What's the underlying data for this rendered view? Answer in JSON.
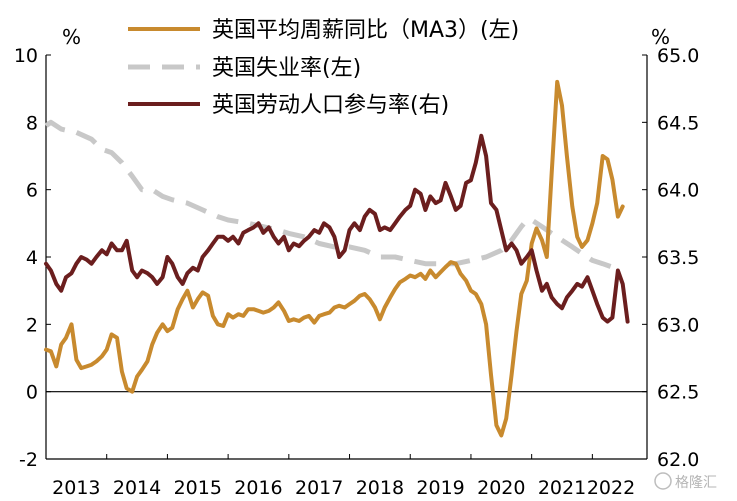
{
  "chart_data": {
    "type": "line",
    "title": "",
    "left_axis": {
      "unit": "%",
      "ylim": [
        -2,
        10
      ],
      "ticks": [
        -2,
        0,
        2,
        4,
        6,
        8,
        10
      ]
    },
    "right_axis": {
      "unit": "%",
      "ylim": [
        62.0,
        65.0
      ],
      "ticks": [
        "62.0",
        "62.5",
        "63.0",
        "63.5",
        "64.0",
        "64.5",
        "65.0"
      ]
    },
    "x_labels": [
      "2013",
      "2014",
      "2015",
      "2016",
      "2017",
      "2018",
      "2019",
      "2020",
      "2021",
      "2022"
    ],
    "x_range": [
      2013.0,
      2022.9
    ],
    "series": [
      {
        "name": "英国平均周薪同比（MA3）(左)",
        "axis": "left",
        "color": "#C88A2E",
        "dash": "solid",
        "points": [
          [
            2013.0,
            1.25
          ],
          [
            2013.08,
            1.2
          ],
          [
            2013.17,
            0.75
          ],
          [
            2013.25,
            1.4
          ],
          [
            2013.33,
            1.6
          ],
          [
            2013.42,
            2.0
          ],
          [
            2013.5,
            0.95
          ],
          [
            2013.58,
            0.7
          ],
          [
            2013.67,
            0.75
          ],
          [
            2013.75,
            0.8
          ],
          [
            2013.83,
            0.9
          ],
          [
            2013.92,
            1.05
          ],
          [
            2014.0,
            1.25
          ],
          [
            2014.08,
            1.7
          ],
          [
            2014.17,
            1.6
          ],
          [
            2014.25,
            0.6
          ],
          [
            2014.33,
            0.1
          ],
          [
            2014.42,
            0.0
          ],
          [
            2014.5,
            0.45
          ],
          [
            2014.58,
            0.65
          ],
          [
            2014.67,
            0.9
          ],
          [
            2014.75,
            1.4
          ],
          [
            2014.83,
            1.75
          ],
          [
            2014.92,
            2.0
          ],
          [
            2015.0,
            1.8
          ],
          [
            2015.08,
            1.9
          ],
          [
            2015.17,
            2.45
          ],
          [
            2015.25,
            2.75
          ],
          [
            2015.33,
            3.0
          ],
          [
            2015.42,
            2.5
          ],
          [
            2015.5,
            2.75
          ],
          [
            2015.58,
            2.95
          ],
          [
            2015.67,
            2.85
          ],
          [
            2015.75,
            2.25
          ],
          [
            2015.83,
            2.0
          ],
          [
            2015.92,
            1.95
          ],
          [
            2016.0,
            2.3
          ],
          [
            2016.08,
            2.2
          ],
          [
            2016.17,
            2.3
          ],
          [
            2016.25,
            2.25
          ],
          [
            2016.33,
            2.45
          ],
          [
            2016.42,
            2.45
          ],
          [
            2016.5,
            2.4
          ],
          [
            2016.58,
            2.35
          ],
          [
            2016.67,
            2.4
          ],
          [
            2016.75,
            2.5
          ],
          [
            2016.83,
            2.65
          ],
          [
            2016.92,
            2.4
          ],
          [
            2017.0,
            2.1
          ],
          [
            2017.08,
            2.15
          ],
          [
            2017.17,
            2.1
          ],
          [
            2017.25,
            2.2
          ],
          [
            2017.33,
            2.25
          ],
          [
            2017.42,
            2.05
          ],
          [
            2017.5,
            2.25
          ],
          [
            2017.58,
            2.3
          ],
          [
            2017.67,
            2.35
          ],
          [
            2017.75,
            2.5
          ],
          [
            2017.83,
            2.55
          ],
          [
            2017.92,
            2.5
          ],
          [
            2018.0,
            2.6
          ],
          [
            2018.08,
            2.7
          ],
          [
            2018.17,
            2.85
          ],
          [
            2018.25,
            2.9
          ],
          [
            2018.33,
            2.75
          ],
          [
            2018.42,
            2.5
          ],
          [
            2018.5,
            2.15
          ],
          [
            2018.58,
            2.5
          ],
          [
            2018.67,
            2.8
          ],
          [
            2018.75,
            3.05
          ],
          [
            2018.83,
            3.25
          ],
          [
            2018.92,
            3.35
          ],
          [
            2019.0,
            3.45
          ],
          [
            2019.08,
            3.4
          ],
          [
            2019.17,
            3.5
          ],
          [
            2019.25,
            3.35
          ],
          [
            2019.33,
            3.6
          ],
          [
            2019.42,
            3.4
          ],
          [
            2019.5,
            3.55
          ],
          [
            2019.58,
            3.7
          ],
          [
            2019.67,
            3.85
          ],
          [
            2019.75,
            3.8
          ],
          [
            2019.83,
            3.5
          ],
          [
            2019.92,
            3.3
          ],
          [
            2020.0,
            3.0
          ],
          [
            2020.08,
            2.9
          ],
          [
            2020.17,
            2.6
          ],
          [
            2020.25,
            2.0
          ],
          [
            2020.33,
            0.5
          ],
          [
            2020.42,
            -1.0
          ],
          [
            2020.5,
            -1.3
          ],
          [
            2020.58,
            -0.8
          ],
          [
            2020.67,
            0.5
          ],
          [
            2020.75,
            1.8
          ],
          [
            2020.83,
            2.9
          ],
          [
            2020.92,
            3.3
          ],
          [
            2021.0,
            4.4
          ],
          [
            2021.08,
            4.85
          ],
          [
            2021.17,
            4.5
          ],
          [
            2021.25,
            4.0
          ],
          [
            2021.33,
            6.5
          ],
          [
            2021.42,
            9.2
          ],
          [
            2021.5,
            8.5
          ],
          [
            2021.58,
            7.0
          ],
          [
            2021.67,
            5.5
          ],
          [
            2021.75,
            4.6
          ],
          [
            2021.83,
            4.3
          ],
          [
            2021.92,
            4.5
          ],
          [
            2022.0,
            5.0
          ],
          [
            2022.08,
            5.6
          ],
          [
            2022.17,
            7.0
          ],
          [
            2022.25,
            6.9
          ],
          [
            2022.33,
            6.3
          ],
          [
            2022.42,
            5.2
          ],
          [
            2022.5,
            5.5
          ]
        ]
      },
      {
        "name": "英国失业率(左)",
        "axis": "left",
        "color": "#C8C8C8",
        "dash": "dashed",
        "points": [
          [
            2013.0,
            7.9
          ],
          [
            2013.08,
            8.0
          ],
          [
            2013.25,
            7.8
          ],
          [
            2013.5,
            7.7
          ],
          [
            2013.75,
            7.5
          ],
          [
            2013.92,
            7.2
          ],
          [
            2014.08,
            7.1
          ],
          [
            2014.25,
            6.8
          ],
          [
            2014.42,
            6.4
          ],
          [
            2014.58,
            6.0
          ],
          [
            2014.75,
            6.0
          ],
          [
            2014.92,
            5.8
          ],
          [
            2015.08,
            5.7
          ],
          [
            2015.33,
            5.6
          ],
          [
            2015.58,
            5.4
          ],
          [
            2015.83,
            5.2
          ],
          [
            2016.0,
            5.1
          ],
          [
            2016.33,
            5.0
          ],
          [
            2016.58,
            4.9
          ],
          [
            2016.83,
            4.8
          ],
          [
            2017.0,
            4.7
          ],
          [
            2017.25,
            4.6
          ],
          [
            2017.5,
            4.4
          ],
          [
            2017.75,
            4.3
          ],
          [
            2018.0,
            4.3
          ],
          [
            2018.25,
            4.2
          ],
          [
            2018.5,
            4.0
          ],
          [
            2018.75,
            4.0
          ],
          [
            2019.0,
            3.9
          ],
          [
            2019.25,
            3.8
          ],
          [
            2019.5,
            3.8
          ],
          [
            2019.75,
            3.8
          ],
          [
            2020.0,
            3.9
          ],
          [
            2020.25,
            4.0
          ],
          [
            2020.5,
            4.2
          ],
          [
            2020.67,
            4.5
          ],
          [
            2020.83,
            4.9
          ],
          [
            2020.92,
            5.1
          ],
          [
            2021.0,
            5.1
          ],
          [
            2021.17,
            4.9
          ],
          [
            2021.33,
            4.7
          ],
          [
            2021.5,
            4.5
          ],
          [
            2021.67,
            4.3
          ],
          [
            2021.83,
            4.1
          ],
          [
            2022.0,
            3.9
          ],
          [
            2022.17,
            3.8
          ],
          [
            2022.33,
            3.7
          ],
          [
            2022.42,
            3.7
          ]
        ]
      },
      {
        "name": "英国劳动人口参与率(右)",
        "axis": "right",
        "color": "#6B1E1E",
        "dash": "solid",
        "points": [
          [
            2013.0,
            63.45
          ],
          [
            2013.08,
            63.4
          ],
          [
            2013.17,
            63.3
          ],
          [
            2013.25,
            63.25
          ],
          [
            2013.33,
            63.35
          ],
          [
            2013.42,
            63.38
          ],
          [
            2013.5,
            63.45
          ],
          [
            2013.58,
            63.5
          ],
          [
            2013.67,
            63.48
          ],
          [
            2013.75,
            63.45
          ],
          [
            2013.83,
            63.5
          ],
          [
            2013.92,
            63.55
          ],
          [
            2014.0,
            63.52
          ],
          [
            2014.08,
            63.6
          ],
          [
            2014.17,
            63.55
          ],
          [
            2014.25,
            63.55
          ],
          [
            2014.33,
            63.62
          ],
          [
            2014.42,
            63.4
          ],
          [
            2014.5,
            63.35
          ],
          [
            2014.58,
            63.4
          ],
          [
            2014.67,
            63.38
          ],
          [
            2014.75,
            63.35
          ],
          [
            2014.83,
            63.3
          ],
          [
            2014.92,
            63.35
          ],
          [
            2015.0,
            63.5
          ],
          [
            2015.08,
            63.45
          ],
          [
            2015.17,
            63.35
          ],
          [
            2015.25,
            63.3
          ],
          [
            2015.33,
            63.38
          ],
          [
            2015.42,
            63.42
          ],
          [
            2015.5,
            63.4
          ],
          [
            2015.58,
            63.5
          ],
          [
            2015.67,
            63.55
          ],
          [
            2015.75,
            63.6
          ],
          [
            2015.83,
            63.65
          ],
          [
            2015.92,
            63.65
          ],
          [
            2016.0,
            63.62
          ],
          [
            2016.08,
            63.65
          ],
          [
            2016.17,
            63.6
          ],
          [
            2016.25,
            63.68
          ],
          [
            2016.33,
            63.7
          ],
          [
            2016.42,
            63.72
          ],
          [
            2016.5,
            63.75
          ],
          [
            2016.58,
            63.68
          ],
          [
            2016.67,
            63.72
          ],
          [
            2016.75,
            63.65
          ],
          [
            2016.83,
            63.6
          ],
          [
            2016.92,
            63.65
          ],
          [
            2017.0,
            63.55
          ],
          [
            2017.08,
            63.6
          ],
          [
            2017.17,
            63.58
          ],
          [
            2017.25,
            63.62
          ],
          [
            2017.33,
            63.65
          ],
          [
            2017.42,
            63.7
          ],
          [
            2017.5,
            63.68
          ],
          [
            2017.58,
            63.75
          ],
          [
            2017.67,
            63.72
          ],
          [
            2017.75,
            63.65
          ],
          [
            2017.83,
            63.5
          ],
          [
            2017.92,
            63.55
          ],
          [
            2018.0,
            63.7
          ],
          [
            2018.08,
            63.75
          ],
          [
            2018.17,
            63.7
          ],
          [
            2018.25,
            63.8
          ],
          [
            2018.33,
            63.85
          ],
          [
            2018.42,
            63.82
          ],
          [
            2018.5,
            63.7
          ],
          [
            2018.58,
            63.72
          ],
          [
            2018.67,
            63.7
          ],
          [
            2018.75,
            63.75
          ],
          [
            2018.83,
            63.8
          ],
          [
            2018.92,
            63.85
          ],
          [
            2019.0,
            63.88
          ],
          [
            2019.08,
            64.0
          ],
          [
            2019.17,
            63.97
          ],
          [
            2019.25,
            63.85
          ],
          [
            2019.33,
            63.95
          ],
          [
            2019.42,
            63.9
          ],
          [
            2019.5,
            63.92
          ],
          [
            2019.58,
            64.05
          ],
          [
            2019.67,
            63.95
          ],
          [
            2019.75,
            63.85
          ],
          [
            2019.83,
            63.88
          ],
          [
            2019.92,
            64.05
          ],
          [
            2020.0,
            64.07
          ],
          [
            2020.08,
            64.2
          ],
          [
            2020.17,
            64.4
          ],
          [
            2020.25,
            64.25
          ],
          [
            2020.33,
            63.9
          ],
          [
            2020.42,
            63.85
          ],
          [
            2020.5,
            63.7
          ],
          [
            2020.58,
            63.55
          ],
          [
            2020.67,
            63.6
          ],
          [
            2020.75,
            63.55
          ],
          [
            2020.83,
            63.45
          ],
          [
            2020.92,
            63.5
          ],
          [
            2021.0,
            63.55
          ],
          [
            2021.08,
            63.4
          ],
          [
            2021.17,
            63.25
          ],
          [
            2021.25,
            63.3
          ],
          [
            2021.33,
            63.2
          ],
          [
            2021.42,
            63.15
          ],
          [
            2021.5,
            63.12
          ],
          [
            2021.58,
            63.2
          ],
          [
            2021.67,
            63.25
          ],
          [
            2021.75,
            63.3
          ],
          [
            2021.83,
            63.28
          ],
          [
            2021.92,
            63.35
          ],
          [
            2022.0,
            63.25
          ],
          [
            2022.08,
            63.15
          ],
          [
            2022.17,
            63.05
          ],
          [
            2022.25,
            63.02
          ],
          [
            2022.33,
            63.05
          ],
          [
            2022.42,
            63.4
          ],
          [
            2022.5,
            63.3
          ],
          [
            2022.58,
            63.02
          ]
        ]
      }
    ],
    "watermark": "格隆汇"
  }
}
